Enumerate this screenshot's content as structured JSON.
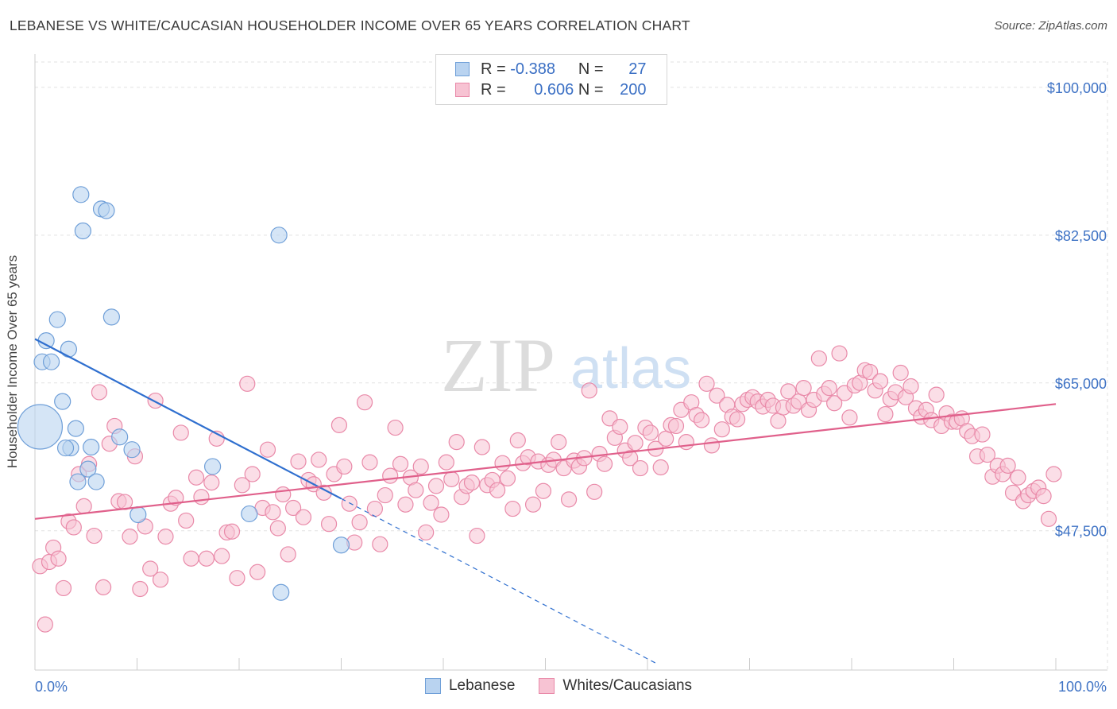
{
  "title": "LEBANESE VS WHITE/CAUCASIAN HOUSEHOLDER INCOME OVER 65 YEARS CORRELATION CHART",
  "source": "Source: ZipAtlas.com",
  "watermark": {
    "zip": "ZIP",
    "atlas": "atlas"
  },
  "legend": {
    "rows": [
      {
        "r_label": "R =",
        "r_value": "-0.388",
        "n_label": "N =",
        "n_value": "27"
      },
      {
        "r_label": "R =",
        "r_value": "0.606",
        "n_label": "N =",
        "n_value": "200"
      }
    ]
  },
  "bottom_legend": [
    "Lebanese",
    "Whites/Caucasians"
  ],
  "colors": {
    "blue_fill": "#b9d3f0",
    "blue_stroke": "#6f9fd8",
    "blue_line": "#2f6fcf",
    "pink_fill": "#f7c3d3",
    "pink_stroke": "#e98aa9",
    "pink_line": "#e0608b",
    "tick_label": "#3f73c5"
  },
  "chart_data": {
    "type": "scatter",
    "title": "LEBANESE VS WHITE/CAUCASIAN HOUSEHOLDER INCOME OVER 65 YEARS CORRELATION CHART",
    "xlabel": "",
    "ylabel": "Householder Income Over 65 years",
    "xlim": [
      0,
      100
    ],
    "ylim": [
      31000,
      103000
    ],
    "x_tick_labels": [
      "0.0%",
      "100.0%"
    ],
    "y_ticks": [
      47500,
      65000,
      82500,
      100000
    ],
    "y_tick_labels": [
      "$47,500",
      "$65,000",
      "$82,500",
      "$100,000"
    ],
    "grid": true,
    "series": [
      {
        "name": "Lebanese",
        "r": -0.388,
        "n": 27,
        "trend": {
          "x0": 0,
          "y0": 70200,
          "x1": 30,
          "y1": 51300,
          "dash_x1": 61,
          "dash_y1": 31700
        },
        "points": [
          [
            0.5,
            59.8,
            28
          ],
          [
            0.7,
            67.5,
            10
          ],
          [
            1.1,
            70.0,
            10
          ],
          [
            1.6,
            67.5,
            10
          ],
          [
            2.2,
            72.5,
            10
          ],
          [
            3.3,
            69.0,
            10
          ],
          [
            2.7,
            62.8,
            10
          ],
          [
            3.5,
            57.3,
            10
          ],
          [
            4.0,
            59.6,
            10
          ],
          [
            4.5,
            87.3,
            10
          ],
          [
            4.7,
            83.0,
            10
          ],
          [
            5.2,
            54.8,
            10
          ],
          [
            5.5,
            57.4,
            10
          ],
          [
            6.0,
            53.3,
            10
          ],
          [
            6.5,
            85.6,
            10
          ],
          [
            7.0,
            85.4,
            10
          ],
          [
            7.5,
            72.8,
            10
          ],
          [
            8.3,
            58.6,
            10
          ],
          [
            9.5,
            57.1,
            10
          ],
          [
            10.1,
            49.4,
            10
          ],
          [
            17.4,
            55.1,
            10
          ],
          [
            21.0,
            49.5,
            10
          ],
          [
            23.9,
            82.5,
            10
          ],
          [
            30.0,
            45.8,
            10
          ],
          [
            24.1,
            40.2,
            10
          ],
          [
            3.0,
            57.3,
            10
          ],
          [
            4.2,
            53.3,
            10
          ]
        ]
      },
      {
        "name": "Whites/Caucasians",
        "r": 0.606,
        "n": 200,
        "trend": {
          "x0": 0,
          "y0": 48900,
          "x1": 100,
          "y1": 62500
        },
        "points": [
          [
            0.5,
            43.3
          ],
          [
            1.0,
            36.4
          ],
          [
            1.4,
            43.8
          ],
          [
            1.8,
            45.5
          ],
          [
            2.3,
            44.2
          ],
          [
            2.8,
            40.7
          ],
          [
            3.3,
            48.6
          ],
          [
            3.8,
            47.9
          ],
          [
            4.3,
            54.2
          ],
          [
            4.8,
            50.4
          ],
          [
            5.3,
            55.4
          ],
          [
            5.8,
            46.9
          ],
          [
            6.3,
            63.9
          ],
          [
            6.7,
            40.8
          ],
          [
            7.3,
            57.8
          ],
          [
            7.8,
            59.9
          ],
          [
            8.2,
            51.0
          ],
          [
            8.8,
            50.9
          ],
          [
            9.3,
            46.8
          ],
          [
            9.8,
            56.3
          ],
          [
            10.3,
            40.6
          ],
          [
            10.8,
            48.0
          ],
          [
            11.3,
            43.0
          ],
          [
            11.8,
            62.9
          ],
          [
            12.3,
            41.7
          ],
          [
            12.8,
            46.8
          ],
          [
            13.3,
            50.7
          ],
          [
            13.8,
            51.4
          ],
          [
            14.3,
            59.1
          ],
          [
            14.8,
            48.7
          ],
          [
            15.3,
            44.2
          ],
          [
            15.8,
            53.8
          ],
          [
            16.3,
            51.5
          ],
          [
            16.8,
            44.2
          ],
          [
            17.3,
            53.2
          ],
          [
            17.8,
            58.4
          ],
          [
            18.3,
            44.5
          ],
          [
            18.8,
            47.3
          ],
          [
            19.3,
            47.4
          ],
          [
            19.8,
            41.9
          ],
          [
            20.3,
            52.9
          ],
          [
            20.8,
            64.9
          ],
          [
            21.3,
            54.2
          ],
          [
            21.8,
            42.6
          ],
          [
            22.3,
            50.2
          ],
          [
            22.8,
            57.1
          ],
          [
            23.3,
            49.7
          ],
          [
            23.8,
            47.8
          ],
          [
            24.3,
            51.8
          ],
          [
            24.8,
            44.7
          ],
          [
            25.3,
            50.2
          ],
          [
            25.8,
            55.7
          ],
          [
            26.3,
            49.1
          ],
          [
            26.8,
            53.5
          ],
          [
            27.3,
            53.0
          ],
          [
            27.8,
            55.9
          ],
          [
            28.3,
            52.0
          ],
          [
            28.8,
            48.3
          ],
          [
            29.3,
            54.2
          ],
          [
            29.8,
            60.0
          ],
          [
            30.3,
            55.1
          ],
          [
            30.8,
            50.7
          ],
          [
            31.3,
            46.1
          ],
          [
            31.8,
            48.5
          ],
          [
            32.3,
            62.7
          ],
          [
            32.8,
            55.6
          ],
          [
            33.3,
            50.1
          ],
          [
            33.8,
            45.9
          ],
          [
            34.3,
            51.7
          ],
          [
            34.8,
            54.0
          ],
          [
            35.3,
            59.7
          ],
          [
            35.8,
            55.4
          ],
          [
            36.3,
            50.6
          ],
          [
            36.8,
            53.8
          ],
          [
            37.3,
            52.3
          ],
          [
            37.8,
            55.1
          ],
          [
            38.3,
            47.3
          ],
          [
            38.8,
            50.8
          ],
          [
            39.3,
            52.8
          ],
          [
            39.8,
            49.4
          ],
          [
            40.3,
            55.6
          ],
          [
            40.8,
            53.6
          ],
          [
            41.3,
            58.0
          ],
          [
            41.8,
            51.5
          ],
          [
            42.3,
            52.8
          ],
          [
            42.8,
            53.2
          ],
          [
            43.3,
            46.9
          ],
          [
            43.8,
            57.4
          ],
          [
            44.3,
            52.9
          ],
          [
            44.8,
            53.5
          ],
          [
            45.3,
            52.3
          ],
          [
            45.8,
            55.5
          ],
          [
            46.3,
            53.7
          ],
          [
            46.8,
            50.1
          ],
          [
            47.3,
            58.2
          ],
          [
            47.8,
            55.5
          ],
          [
            48.3,
            56.2
          ],
          [
            48.8,
            50.6
          ],
          [
            49.3,
            55.7
          ],
          [
            49.8,
            52.2
          ],
          [
            50.3,
            55.3
          ],
          [
            50.8,
            55.9
          ],
          [
            51.3,
            58.0
          ],
          [
            51.8,
            54.9
          ],
          [
            52.3,
            51.2
          ],
          [
            52.8,
            55.8
          ],
          [
            53.3,
            55.1
          ],
          [
            53.8,
            56.1
          ],
          [
            54.3,
            64.1
          ],
          [
            54.8,
            52.1
          ],
          [
            55.3,
            56.6
          ],
          [
            55.8,
            55.4
          ],
          [
            56.3,
            60.8
          ],
          [
            56.8,
            58.5
          ],
          [
            57.3,
            59.8
          ],
          [
            57.8,
            57.0
          ],
          [
            58.3,
            56.1
          ],
          [
            58.8,
            57.9
          ],
          [
            59.3,
            54.9
          ],
          [
            59.8,
            59.7
          ],
          [
            60.3,
            59.1
          ],
          [
            60.8,
            57.2
          ],
          [
            61.3,
            55.0
          ],
          [
            61.8,
            58.4
          ],
          [
            62.3,
            60.0
          ],
          [
            62.8,
            59.9
          ],
          [
            63.3,
            61.8
          ],
          [
            63.8,
            58.0
          ],
          [
            64.3,
            62.7
          ],
          [
            64.8,
            61.2
          ],
          [
            65.3,
            60.6
          ],
          [
            65.8,
            64.9
          ],
          [
            66.3,
            57.6
          ],
          [
            66.8,
            63.5
          ],
          [
            67.3,
            59.5
          ],
          [
            67.8,
            62.4
          ],
          [
            68.3,
            61.0
          ],
          [
            68.8,
            60.7
          ],
          [
            69.3,
            62.5
          ],
          [
            69.8,
            63.0
          ],
          [
            70.3,
            63.3
          ],
          [
            70.8,
            62.8
          ],
          [
            71.3,
            62.2
          ],
          [
            71.8,
            63.0
          ],
          [
            72.3,
            62.3
          ],
          [
            72.8,
            60.5
          ],
          [
            73.3,
            62.1
          ],
          [
            73.8,
            64.0
          ],
          [
            74.3,
            62.3
          ],
          [
            74.8,
            62.8
          ],
          [
            75.3,
            64.4
          ],
          [
            75.8,
            61.8
          ],
          [
            76.3,
            63.0
          ],
          [
            76.8,
            67.9
          ],
          [
            77.3,
            63.7
          ],
          [
            77.8,
            64.4
          ],
          [
            78.3,
            62.6
          ],
          [
            78.8,
            68.5
          ],
          [
            79.3,
            63.8
          ],
          [
            79.8,
            60.9
          ],
          [
            80.3,
            64.7
          ],
          [
            80.8,
            65.0
          ],
          [
            81.3,
            66.5
          ],
          [
            81.8,
            66.3
          ],
          [
            82.3,
            64.1
          ],
          [
            82.8,
            65.2
          ],
          [
            83.3,
            61.3
          ],
          [
            83.8,
            63.1
          ],
          [
            84.3,
            63.9
          ],
          [
            84.8,
            66.2
          ],
          [
            85.3,
            63.3
          ],
          [
            85.8,
            64.6
          ],
          [
            86.3,
            62.0
          ],
          [
            86.8,
            61.0
          ],
          [
            87.3,
            61.8
          ],
          [
            87.8,
            60.6
          ],
          [
            88.3,
            63.6
          ],
          [
            88.8,
            59.9
          ],
          [
            89.3,
            61.4
          ],
          [
            89.8,
            60.4
          ],
          [
            90.3,
            60.4
          ],
          [
            90.8,
            60.8
          ],
          [
            91.3,
            59.3
          ],
          [
            91.8,
            58.7
          ],
          [
            92.3,
            56.3
          ],
          [
            92.8,
            58.9
          ],
          [
            93.3,
            56.5
          ],
          [
            93.8,
            53.9
          ],
          [
            94.3,
            55.2
          ],
          [
            94.8,
            54.2
          ],
          [
            95.3,
            55.2
          ],
          [
            95.8,
            52.0
          ],
          [
            96.3,
            53.8
          ],
          [
            96.8,
            51.0
          ],
          [
            97.3,
            51.7
          ],
          [
            97.8,
            52.2
          ],
          [
            98.3,
            52.6
          ],
          [
            98.8,
            51.6
          ],
          [
            99.3,
            48.9
          ],
          [
            99.8,
            54.2
          ]
        ]
      }
    ]
  }
}
